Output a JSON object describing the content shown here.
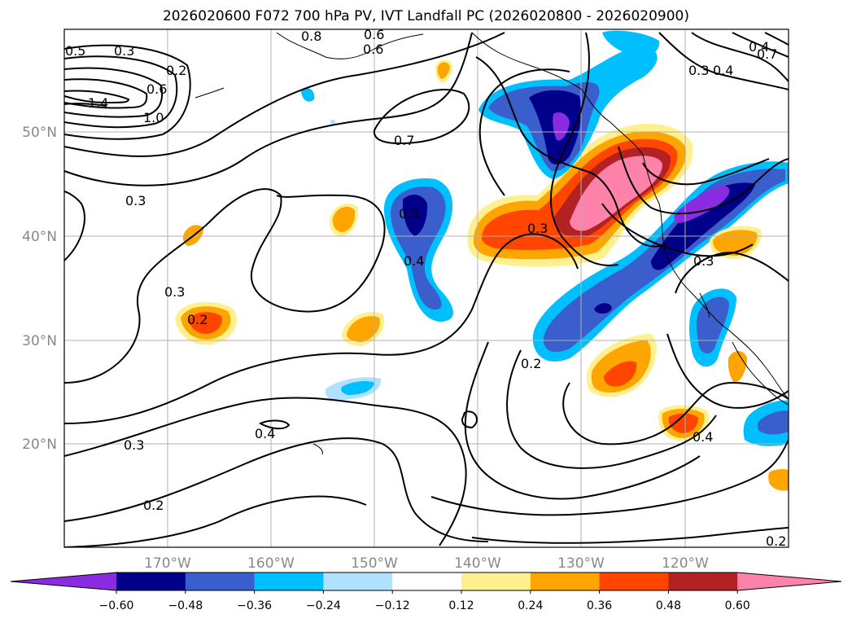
{
  "title": "2026020600 F072 700 hPa PV, IVT Landfall PC (2026020800 - 2026020900)",
  "map": {
    "lon_ticks": [
      "170°W",
      "160°W",
      "150°W",
      "140°W",
      "130°W",
      "120°W"
    ],
    "lat_ticks": [
      "50°N",
      "40°N",
      "30°N",
      "20°N"
    ],
    "contour_labels": [
      "0.5",
      "0.3",
      "0.2",
      "0.8",
      "0.6",
      "0.6",
      "0.4",
      "0.7",
      "0.6",
      "1.4",
      "1.0",
      "0.3",
      "0.4",
      "0.7",
      "0.5",
      "0.3",
      "0.4",
      "0.3",
      "0.2",
      "0.2",
      "0.3",
      "0.4",
      "0.3",
      "0.2",
      "0.4",
      "0.2",
      "0.3"
    ]
  },
  "colorbar": {
    "ticks": [
      "−0.60",
      "−0.48",
      "−0.36",
      "−0.24",
      "−0.12",
      "0.12",
      "0.24",
      "0.36",
      "0.48",
      "0.60"
    ],
    "colors": [
      "#8a2be2",
      "#00008b",
      "#3a5fcd",
      "#00bfff",
      "#b0e2ff",
      "#ffffff",
      "#fff08f",
      "#ffa500",
      "#ff4500",
      "#b22222",
      "#ff82ab"
    ]
  },
  "colors": {
    "negative": [
      "#8a2be2",
      "#00008b",
      "#3a5fcd",
      "#00bfff",
      "#b0e2ff"
    ],
    "positive": [
      "#fff08f",
      "#ffa500",
      "#ff4500",
      "#b22222",
      "#ff82ab"
    ],
    "contour": "#000000",
    "grid": "#b0b0b0",
    "tick_text": "#888888"
  }
}
